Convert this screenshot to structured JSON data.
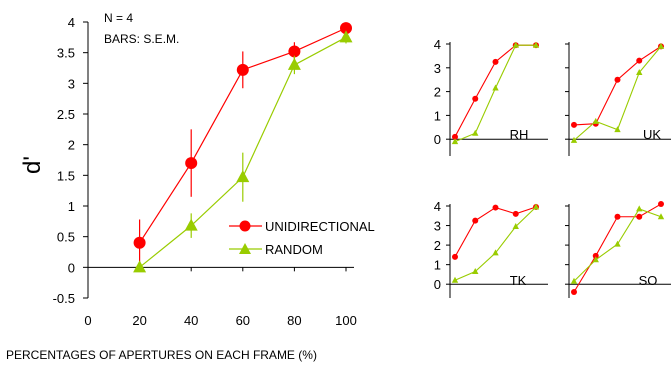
{
  "chart_data": [
    {
      "type": "line",
      "xlabel": "PERCENTAGES OF APERTURES ON EACH FRAME (%)",
      "ylabel": "d'",
      "annotations": [
        "N = 4",
        "BARS: S.E.M."
      ],
      "xlim": [
        0,
        100
      ],
      "ylim": [
        -0.5,
        4
      ],
      "x_ticks": [
        "0",
        "20",
        "40",
        "60",
        "80",
        "100"
      ],
      "y_ticks": [
        "-0.5",
        "0",
        "0.5",
        "1",
        "1.5",
        "2",
        "2.5",
        "3",
        "3.5",
        "4"
      ],
      "legend_position": "right",
      "series": [
        {
          "name": "UNIDIRECTIONAL",
          "color": "#ff0000",
          "marker": "circle",
          "x": [
            20,
            40,
            60,
            80,
            100
          ],
          "y": [
            0.4,
            1.7,
            3.22,
            3.52,
            3.9
          ],
          "err": [
            0.38,
            0.55,
            0.3,
            0.15,
            0.05
          ]
        },
        {
          "name": "RANDOM",
          "color": "#99cc00",
          "marker": "triangle",
          "x": [
            20,
            40,
            60,
            80,
            100
          ],
          "y": [
            0.0,
            0.68,
            1.47,
            3.3,
            3.75
          ],
          "err": [
            0.0,
            0.2,
            0.4,
            0.15,
            0.1
          ]
        }
      ]
    },
    {
      "type": "line",
      "panel_label": "RH",
      "ylim": [
        0,
        4
      ],
      "y_ticks": [
        "0",
        "1",
        "2",
        "3",
        "4"
      ],
      "series": [
        {
          "color": "#ff0000",
          "x": [
            20,
            40,
            60,
            80,
            100
          ],
          "y": [
            0.1,
            1.7,
            3.25,
            3.95,
            3.95
          ]
        },
        {
          "color": "#99cc00",
          "x": [
            20,
            40,
            60,
            80,
            100
          ],
          "y": [
            -0.1,
            0.25,
            2.15,
            3.95,
            3.95
          ]
        }
      ]
    },
    {
      "type": "line",
      "panel_label": "UK",
      "ylim": [
        0,
        4
      ],
      "series": [
        {
          "color": "#ff0000",
          "x": [
            20,
            40,
            60,
            80,
            100
          ],
          "y": [
            0.6,
            0.65,
            2.5,
            3.3,
            3.9
          ]
        },
        {
          "color": "#99cc00",
          "x": [
            20,
            40,
            60,
            80,
            100
          ],
          "y": [
            -0.05,
            0.75,
            0.4,
            2.8,
            3.9
          ]
        }
      ]
    },
    {
      "type": "line",
      "panel_label": "TK",
      "ylim": [
        0,
        4
      ],
      "y_ticks": [
        "0",
        "1",
        "2",
        "3",
        "4"
      ],
      "series": [
        {
          "color": "#ff0000",
          "x": [
            20,
            40,
            60,
            80,
            100
          ],
          "y": [
            1.4,
            3.25,
            3.92,
            3.6,
            3.95
          ]
        },
        {
          "color": "#99cc00",
          "x": [
            20,
            40,
            60,
            80,
            100
          ],
          "y": [
            0.2,
            0.65,
            1.6,
            2.95,
            3.95
          ]
        }
      ]
    },
    {
      "type": "line",
      "panel_label": "SO",
      "ylim": [
        0,
        4
      ],
      "series": [
        {
          "color": "#ff0000",
          "x": [
            20,
            40,
            60,
            80,
            100
          ],
          "y": [
            -0.4,
            1.45,
            3.45,
            3.45,
            4.1
          ]
        },
        {
          "color": "#99cc00",
          "x": [
            20,
            40,
            60,
            80,
            100
          ],
          "y": [
            0.15,
            1.25,
            2.05,
            3.85,
            3.45
          ]
        }
      ]
    }
  ]
}
